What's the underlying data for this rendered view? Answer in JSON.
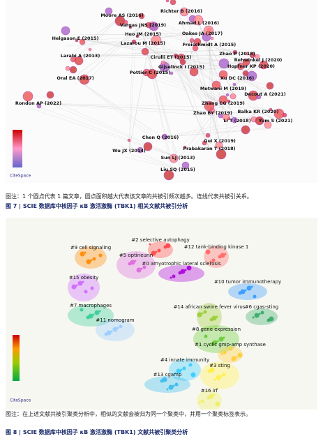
{
  "figure7": {
    "logo": "CiteSpace",
    "nodes": [
      "Richter B (2016)",
      "Moore AS (2016)",
      "Vargas JNS (2019)",
      "Ahmad L (2016)",
      "Heo JM (2015)",
      "Oakes JA (2017)",
      "Helgason E (2015)",
      "Lazarou M (2015)",
      "Freischmidt A (2015)",
      "Zhao P (2018)",
      "Larabi A (2013)",
      "Cirulli ET (2015)",
      "Rehwinkel J (2020)",
      "Hopfner KP (2020)",
      "Gijselinck I (2015)",
      "Pottier C (2015)",
      "Xu DC (2016)",
      "Oral EA (2017)",
      "Motwani M (2019)",
      "Decout A (2021)",
      "Zhang CG (2019)",
      "Rondon AP (2022)",
      "Balka KR (2020)",
      "Zhao BY (2019)",
      "Li T (2018)",
      "Yum S (2021)",
      "Chen Q (2016)",
      "Gui X (2019)",
      "Wu JX (2014)",
      "Prabakaran T (2018)",
      "Sun LJ (2013)",
      "Liu SQ (2015)"
    ],
    "note": "图注：1 个圆点代表 1 篇文章，圆点面积越大代表该文章的共被引频次越多。连线代表共被引关系。",
    "title": "图 7 | SCIE 数据库中核因子 κB 激活激酶 (TBK1) 相关文献共被引分析"
  },
  "figure8": {
    "logo": "CiteSpace",
    "clusters": [
      "#2 selective autophagy",
      "#9 cell signaling",
      "#5 optineurin",
      "#0 amyotrophic lateral sclerosis",
      "#12 tank-binding kinase 1",
      "#15 obesity",
      "#10 tumor immunotherapy",
      "#7 macrophages",
      "#14 african swine fever virus",
      "#6 cgas-sting",
      "#11 nomogram",
      "#8 gene expression",
      "#1 cyclic gmp-amp synthase",
      "#4 innate immunity",
      "#3 sting",
      "#13 cgamp",
      "#16 irf"
    ],
    "note": "图注：在上述文献共被引聚类分析中，相似的文献会被归为同一个聚类中，并用一个聚类标签表示。",
    "title": "图 8 | SCIE 数据库中核因子 κB 激活激酶 (TBK1) 文献共被引聚类分析"
  }
}
